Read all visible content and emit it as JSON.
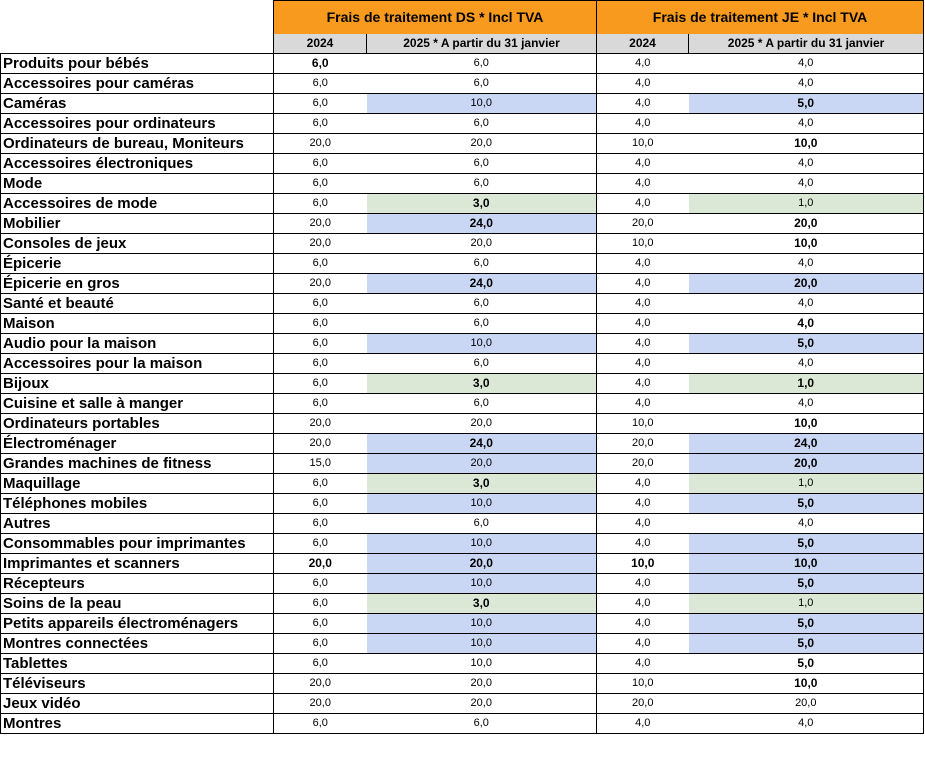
{
  "header": {
    "group_ds": "Frais de traitement DS * Incl TVA",
    "group_je": "Frais de traitement JE *  Incl TVA",
    "col_2024": "2024",
    "col_2025": "2025 * A partir du 31 janvier"
  },
  "rows": [
    {
      "name": "Produits pour bébés",
      "ds2024": "6,0",
      "ds2025": "6,0",
      "je2024": "4,0",
      "je2025": "4,0",
      "ds2024_bold": true
    },
    {
      "name": "Accessoires pour caméras",
      "ds2024": "6,0",
      "ds2025": "6,0",
      "je2024": "4,0",
      "je2025": "4,0"
    },
    {
      "name": "Caméras",
      "ds2024": "6,0",
      "ds2025": "10,0",
      "je2024": "4,0",
      "je2025": "5,0",
      "hl_ds": "blue",
      "hl_je": "blue",
      "je2025_bold": true
    },
    {
      "name": "Accessoires pour ordinateurs",
      "ds2024": "6,0",
      "ds2025": "6,0",
      "je2024": "4,0",
      "je2025": "4,0"
    },
    {
      "name": "Ordinateurs de bureau, Moniteurs",
      "ds2024": "20,0",
      "ds2025": "20,0",
      "je2024": "10,0",
      "je2025": "10,0",
      "je2025_bold": true
    },
    {
      "name": "Accessoires électroniques",
      "ds2024": "6,0",
      "ds2025": "6,0",
      "je2024": "4,0",
      "je2025": "4,0"
    },
    {
      "name": "Mode",
      "ds2024": "6,0",
      "ds2025": "6,0",
      "je2024": "4,0",
      "je2025": "4,0"
    },
    {
      "name": "Accessoires de mode",
      "ds2024": "6,0",
      "ds2025": "3,0",
      "je2024": "4,0",
      "je2025": "1,0",
      "hl_ds": "green",
      "hl_je": "green",
      "ds2025_bold": true
    },
    {
      "name": "Mobilier",
      "ds2024": "20,0",
      "ds2025": "24,0",
      "je2024": "20,0",
      "je2025": "20,0",
      "hl_ds": "blue",
      "ds2025_bold": true,
      "je2025_bold": true
    },
    {
      "name": "Consoles de jeux",
      "ds2024": "20,0",
      "ds2025": "20,0",
      "je2024": "10,0",
      "je2025": "10,0",
      "je2025_bold": true
    },
    {
      "name": "Épicerie",
      "ds2024": "6,0",
      "ds2025": "6,0",
      "je2024": "4,0",
      "je2025": "4,0"
    },
    {
      "name": "Épicerie en gros",
      "ds2024": "20,0",
      "ds2025": "24,0",
      "je2024": "4,0",
      "je2025": "20,0",
      "hl_ds": "blue",
      "hl_je": "blue",
      "ds2025_bold": true,
      "je2025_bold": true
    },
    {
      "name": "Santé et beauté",
      "ds2024": "6,0",
      "ds2025": "6,0",
      "je2024": "4,0",
      "je2025": "4,0"
    },
    {
      "name": "Maison",
      "ds2024": "6,0",
      "ds2025": "6,0",
      "je2024": "4,0",
      "je2025": "4,0",
      "je2025_bold": true
    },
    {
      "name": "Audio pour la maison",
      "ds2024": "6,0",
      "ds2025": "10,0",
      "je2024": "4,0",
      "je2025": "5,0",
      "hl_ds": "blue",
      "hl_je": "blue",
      "je2025_bold": true
    },
    {
      "name": "Accessoires pour la maison",
      "ds2024": "6,0",
      "ds2025": "6,0",
      "je2024": "4,0",
      "je2025": "4,0"
    },
    {
      "name": "Bijoux",
      "ds2024": "6,0",
      "ds2025": "3,0",
      "je2024": "4,0",
      "je2025": "1,0",
      "hl_ds": "green",
      "hl_je": "green",
      "ds2025_bold": true,
      "je2025_bold": true
    },
    {
      "name": "Cuisine et salle à manger",
      "ds2024": "6,0",
      "ds2025": "6,0",
      "je2024": "4,0",
      "je2025": "4,0"
    },
    {
      "name": "Ordinateurs portables",
      "ds2024": "20,0",
      "ds2025": "20,0",
      "je2024": "10,0",
      "je2025": "10,0",
      "je2025_bold": true
    },
    {
      "name": "Électroménager",
      "ds2024": "20,0",
      "ds2025": "24,0",
      "je2024": "20,0",
      "je2025": "24,0",
      "hl_ds": "blue",
      "hl_je": "blue",
      "ds2025_bold": true,
      "je2025_bold": true
    },
    {
      "name": "Grandes machines de fitness",
      "ds2024": "15,0",
      "ds2025": "20,0",
      "je2024": "20,0",
      "je2025": "20,0",
      "hl_ds": "blue",
      "hl_je": "blue",
      "je2025_bold": true
    },
    {
      "name": "Maquillage",
      "ds2024": "6,0",
      "ds2025": "3,0",
      "je2024": "4,0",
      "je2025": "1,0",
      "hl_ds": "green",
      "hl_je": "green",
      "ds2025_bold": true
    },
    {
      "name": "Téléphones mobiles",
      "ds2024": "6,0",
      "ds2025": "10,0",
      "je2024": "4,0",
      "je2025": "5,0",
      "hl_ds": "blue",
      "hl_je": "blue",
      "je2025_bold": true
    },
    {
      "name": "Autres",
      "ds2024": "6,0",
      "ds2025": "6,0",
      "je2024": "4,0",
      "je2025": "4,0"
    },
    {
      "name": "Consommables pour imprimantes",
      "ds2024": "6,0",
      "ds2025": "10,0",
      "je2024": "4,0",
      "je2025": "5,0",
      "hl_ds": "blue",
      "hl_je": "blue",
      "je2025_bold": true
    },
    {
      "name": "Imprimantes et scanners",
      "ds2024": "20,0",
      "ds2025": "20,0",
      "je2024": "10,0",
      "je2025": "10,0",
      "hl_ds": "blue",
      "hl_je": "blue",
      "ds2024_bold": true,
      "ds2025_bold": true,
      "je2024_bold": true,
      "je2025_bold": true
    },
    {
      "name": "Récepteurs",
      "ds2024": "6,0",
      "ds2025": "10,0",
      "je2024": "4,0",
      "je2025": "5,0",
      "hl_ds": "blue",
      "hl_je": "blue",
      "je2025_bold": true
    },
    {
      "name": "Soins de la peau",
      "ds2024": "6,0",
      "ds2025": "3,0",
      "je2024": "4,0",
      "je2025": "1,0",
      "hl_ds": "green",
      "hl_je": "green",
      "ds2025_bold": true
    },
    {
      "name": "Petits appareils électroménagers",
      "ds2024": "6,0",
      "ds2025": "10,0",
      "je2024": "4,0",
      "je2025": "5,0",
      "hl_ds": "blue",
      "hl_je": "blue",
      "je2025_bold": true
    },
    {
      "name": "Montres connectées",
      "ds2024": "6,0",
      "ds2025": "10,0",
      "je2024": "4,0",
      "je2025": "5,0",
      "hl_ds": "blue",
      "hl_je": "blue",
      "je2025_bold": true
    },
    {
      "name": "Tablettes",
      "ds2024": "6,0",
      "ds2025": "10,0",
      "je2024": "4,0",
      "je2025": "5,0",
      "je2025_bold": true
    },
    {
      "name": "Téléviseurs",
      "ds2024": "20,0",
      "ds2025": "20,0",
      "je2024": "10,0",
      "je2025": "10,0",
      "je2025_bold": true
    },
    {
      "name": "Jeux vidéo",
      "ds2024": "20,0",
      "ds2025": "20,0",
      "je2024": "20,0",
      "je2025": "20,0"
    },
    {
      "name": "Montres",
      "ds2024": "6,0",
      "ds2025": "6,0",
      "je2024": "4,0",
      "je2025": "4,0"
    }
  ],
  "colors": {
    "header_orange": "#f79a1e",
    "subheader_gray": "#d9d9d9",
    "increase_blue": "#c9d7f5",
    "decrease_green": "#dbe8d6"
  }
}
